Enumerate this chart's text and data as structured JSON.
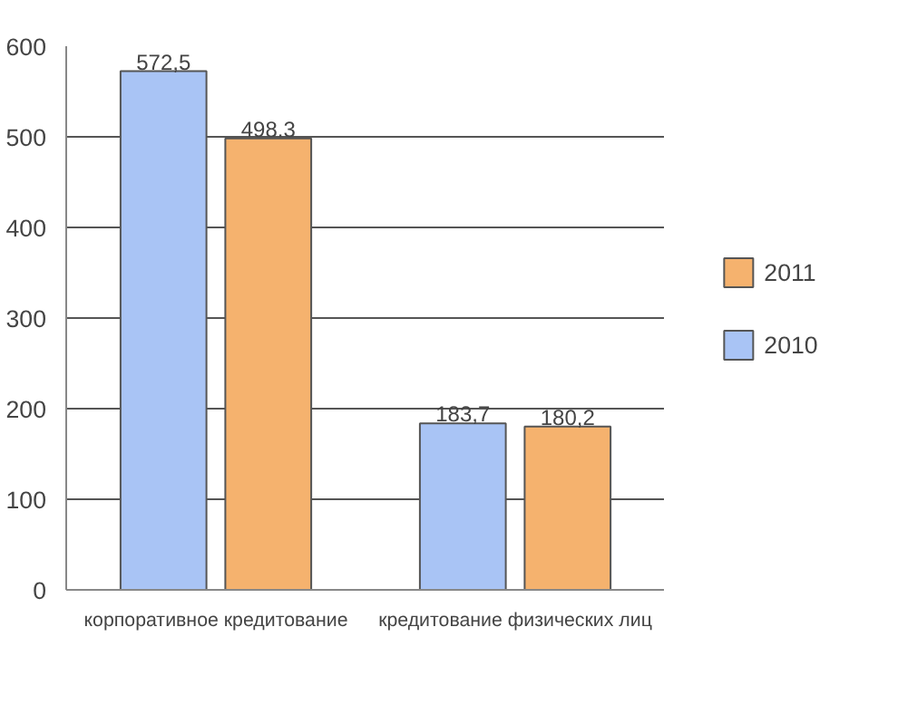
{
  "chart_data": {
    "type": "bar",
    "categories": [
      "корпоративное кредитование",
      "кредитование физических лиц"
    ],
    "series": [
      {
        "name": "2010",
        "color": "#a9c4f5",
        "values": [
          572.5,
          183.7
        ],
        "value_labels": [
          "572,5",
          "183,7"
        ]
      },
      {
        "name": "2011",
        "color": "#f5b26e",
        "values": [
          498.3,
          180.2
        ],
        "value_labels": [
          "498.3",
          "180,2"
        ]
      }
    ],
    "ylim": [
      0,
      600
    ],
    "yticks": [
      0,
      100,
      200,
      300,
      400,
      500,
      600
    ],
    "grid": "y",
    "legend": "right"
  }
}
